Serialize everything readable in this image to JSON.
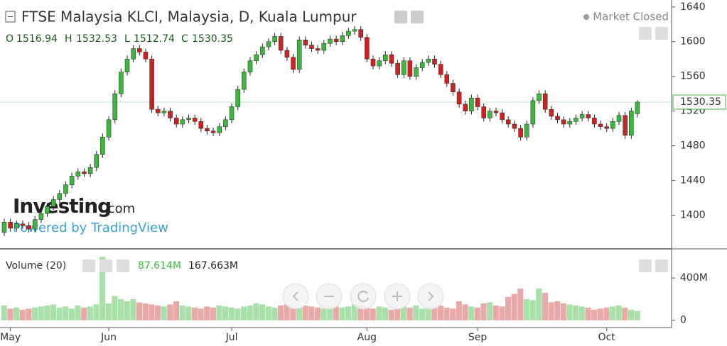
{
  "chart_data": {
    "type": "candlestick",
    "title": "FTSE Malaysia KLCI, Malaysia, D, Kuala Lumpur",
    "status": "Market Closed",
    "header": {
      "o_label": "O",
      "open": 1516.94,
      "h_label": "H",
      "high": 1532.53,
      "l_label": "L",
      "low": 1512.74,
      "c_label": "C",
      "close": 1530.35
    },
    "watermark": {
      "brand": "Investing",
      "suffix": ".com",
      "powered": "Powered by TradingView"
    },
    "volume_header": {
      "title": "Volume (20)",
      "volume": {
        "value": 87.614,
        "label": "87.614M"
      },
      "volume_ma": {
        "value": 167.663,
        "label": "167.663M"
      }
    },
    "up_color": "#3cb93c",
    "down_color": "#cc2222",
    "volume_up_color": "#a9dfa9",
    "volume_down_color": "#e8a9a9",
    "categories": [
      null,
      "May",
      null,
      null,
      null,
      null,
      null,
      null,
      null,
      null,
      null,
      null,
      null,
      null,
      null,
      null,
      null,
      "Jun",
      null,
      null,
      null,
      null,
      null,
      null,
      null,
      null,
      null,
      null,
      null,
      null,
      null,
      null,
      null,
      null,
      null,
      null,
      null,
      "Jul",
      null,
      null,
      null,
      null,
      null,
      null,
      null,
      null,
      null,
      null,
      null,
      null,
      null,
      null,
      null,
      null,
      null,
      null,
      null,
      null,
      null,
      "Aug",
      null,
      null,
      null,
      null,
      null,
      null,
      null,
      null,
      null,
      null,
      null,
      null,
      null,
      null,
      null,
      null,
      null,
      "Sep",
      null,
      null,
      null,
      null,
      null,
      null,
      null,
      null,
      null,
      null,
      null,
      null,
      null,
      null,
      null,
      null,
      null,
      null,
      null,
      null,
      "Oct",
      null,
      null,
      null,
      null,
      null
    ],
    "open": [
      1380,
      1392,
      1385,
      1390,
      1388,
      1384,
      1395,
      1402,
      1410,
      1418,
      1425,
      1435,
      1445,
      1450,
      1448,
      1455,
      1470,
      1490,
      1510,
      1540,
      1565,
      1580,
      1592,
      1588,
      1580,
      1522,
      1518,
      1520,
      1512,
      1505,
      1510,
      1512,
      1508,
      1500,
      1497,
      1495,
      1502,
      1510,
      1525,
      1545,
      1565,
      1578,
      1585,
      1594,
      1600,
      1606,
      1590,
      1582,
      1568,
      1602,
      1596,
      1592,
      1590,
      1598,
      1603,
      1600,
      1607,
      1612,
      1614,
      1605,
      1580,
      1572,
      1578,
      1585,
      1575,
      1562,
      1578,
      1560,
      1570,
      1576,
      1580,
      1574,
      1562,
      1552,
      1542,
      1528,
      1520,
      1535,
      1525,
      1512,
      1520,
      1518,
      1510,
      1505,
      1500,
      1490,
      1505,
      1532,
      1540,
      1522,
      1514,
      1510,
      1505,
      1508,
      1512,
      1516,
      1512,
      1505,
      1502,
      1500,
      1508,
      1515,
      1492,
      1516.94
    ],
    "high": [
      1396,
      1396,
      1394,
      1394,
      1392,
      1399,
      1406,
      1414,
      1422,
      1429,
      1439,
      1449,
      1454,
      1454,
      1459,
      1474,
      1494,
      1514,
      1544,
      1569,
      1584,
      1596,
      1596,
      1592,
      1584,
      1526,
      1524,
      1524,
      1516,
      1514,
      1516,
      1516,
      1512,
      1504,
      1501,
      1506,
      1514,
      1529,
      1549,
      1569,
      1582,
      1589,
      1598,
      1604,
      1610,
      1610,
      1594,
      1586,
      1606,
      1606,
      1600,
      1596,
      1602,
      1607,
      1607,
      1611,
      1616,
      1618,
      1618,
      1609,
      1584,
      1582,
      1589,
      1589,
      1579,
      1582,
      1582,
      1574,
      1580,
      1584,
      1584,
      1578,
      1566,
      1556,
      1546,
      1532,
      1539,
      1539,
      1529,
      1524,
      1524,
      1522,
      1514,
      1509,
      1504,
      1509,
      1536,
      1544,
      1544,
      1526,
      1518,
      1514,
      1512,
      1516,
      1520,
      1520,
      1516,
      1509,
      1506,
      1512,
      1519,
      1519,
      1524,
      1532.53
    ],
    "low": [
      1376,
      1381,
      1381,
      1384,
      1380,
      1380,
      1391,
      1398,
      1406,
      1414,
      1421,
      1431,
      1441,
      1444,
      1444,
      1451,
      1466,
      1486,
      1506,
      1536,
      1561,
      1576,
      1584,
      1576,
      1518,
      1514,
      1514,
      1508,
      1501,
      1501,
      1506,
      1504,
      1496,
      1493,
      1491,
      1491,
      1498,
      1506,
      1521,
      1541,
      1561,
      1574,
      1581,
      1590,
      1596,
      1586,
      1578,
      1564,
      1564,
      1592,
      1588,
      1586,
      1586,
      1594,
      1596,
      1596,
      1603,
      1608,
      1601,
      1576,
      1568,
      1568,
      1574,
      1571,
      1558,
      1558,
      1556,
      1556,
      1566,
      1572,
      1570,
      1558,
      1548,
      1538,
      1524,
      1516,
      1516,
      1521,
      1508,
      1508,
      1514,
      1506,
      1501,
      1496,
      1486,
      1486,
      1501,
      1528,
      1518,
      1510,
      1506,
      1501,
      1501,
      1504,
      1508,
      1508,
      1501,
      1498,
      1496,
      1496,
      1504,
      1488,
      1488,
      1512.74
    ],
    "close": [
      1392,
      1385,
      1390,
      1388,
      1384,
      1395,
      1402,
      1410,
      1418,
      1425,
      1435,
      1445,
      1450,
      1448,
      1455,
      1470,
      1490,
      1510,
      1540,
      1565,
      1580,
      1592,
      1588,
      1580,
      1522,
      1518,
      1520,
      1512,
      1505,
      1510,
      1512,
      1508,
      1500,
      1497,
      1495,
      1502,
      1510,
      1525,
      1545,
      1565,
      1578,
      1585,
      1594,
      1600,
      1606,
      1590,
      1582,
      1568,
      1602,
      1596,
      1592,
      1590,
      1598,
      1603,
      1600,
      1607,
      1612,
      1614,
      1605,
      1580,
      1572,
      1578,
      1585,
      1575,
      1562,
      1578,
      1560,
      1570,
      1576,
      1580,
      1574,
      1562,
      1552,
      1542,
      1528,
      1520,
      1535,
      1525,
      1512,
      1520,
      1518,
      1510,
      1505,
      1500,
      1490,
      1505,
      1532,
      1540,
      1522,
      1514,
      1510,
      1505,
      1508,
      1512,
      1516,
      1512,
      1505,
      1502,
      1500,
      1508,
      1515,
      1492,
      1520,
      1530.35
    ],
    "volume": [
      140,
      110,
      120,
      100,
      110,
      120,
      130,
      140,
      150,
      120,
      130,
      110,
      140,
      120,
      130,
      150,
      600,
      160,
      230,
      200,
      180,
      200,
      170,
      160,
      150,
      140,
      130,
      150,
      180,
      140,
      130,
      120,
      110,
      130,
      120,
      140,
      130,
      120,
      110,
      130,
      140,
      160,
      150,
      130,
      120,
      140,
      150,
      130,
      120,
      140,
      130,
      120,
      110,
      140,
      130,
      120,
      130,
      150,
      140,
      120,
      110,
      130,
      120,
      100,
      110,
      130,
      120,
      140,
      110,
      120,
      130,
      140,
      120,
      110,
      180,
      150,
      130,
      120,
      160,
      170,
      140,
      130,
      220,
      250,
      300,
      200,
      190,
      300,
      260,
      170,
      180,
      160,
      150,
      140,
      130,
      120,
      100,
      110,
      120,
      130,
      140,
      120,
      100,
      87.614
    ],
    "ylim": [
      1362,
      1648
    ],
    "yticks": [
      1400,
      1440,
      1480,
      1520,
      1560,
      1600,
      1640
    ],
    "y2lim": [
      -69,
      669
    ],
    "y2ticks": [
      0,
      {
        "value": 400,
        "label": "400M"
      }
    ]
  }
}
